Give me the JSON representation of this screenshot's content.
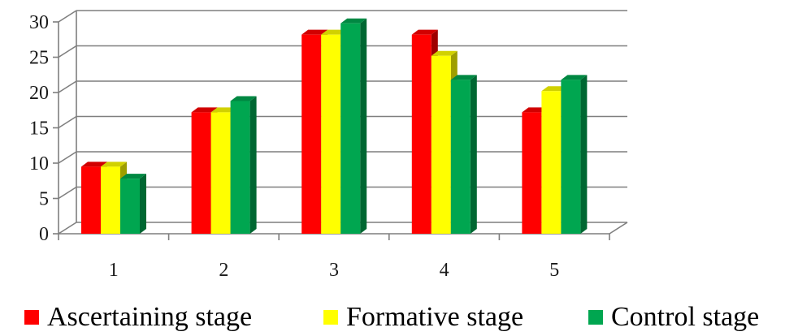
{
  "chart_data": {
    "type": "bar",
    "categories": [
      "1",
      "2",
      "3",
      "4",
      "5"
    ],
    "series": [
      {
        "name": "Ascertaining stage",
        "values": [
          9.5,
          17.2,
          28.2,
          28.2,
          17.2
        ],
        "color": "#ff0000"
      },
      {
        "name": "Formative stage",
        "values": [
          9.5,
          17.2,
          28.2,
          25.2,
          20.2
        ],
        "color": "#ffff00"
      },
      {
        "name": "Control stage",
        "values": [
          7.8,
          18.8,
          29.8,
          21.8,
          21.8
        ],
        "color": "#00a650"
      }
    ],
    "yticks": [
      "0",
      "5",
      "10",
      "15",
      "20",
      "25",
      "30"
    ],
    "ylim": [
      0,
      30
    ],
    "grid": true,
    "legend_position": "bottom",
    "style": "3d-clustered-bar"
  },
  "legend": {
    "items": [
      {
        "label": "Ascertaining stage",
        "color": "#ff0000"
      },
      {
        "label": "Formative stage",
        "color": "#ffff00"
      },
      {
        "label": "Control stage",
        "color": "#00a650"
      }
    ]
  }
}
